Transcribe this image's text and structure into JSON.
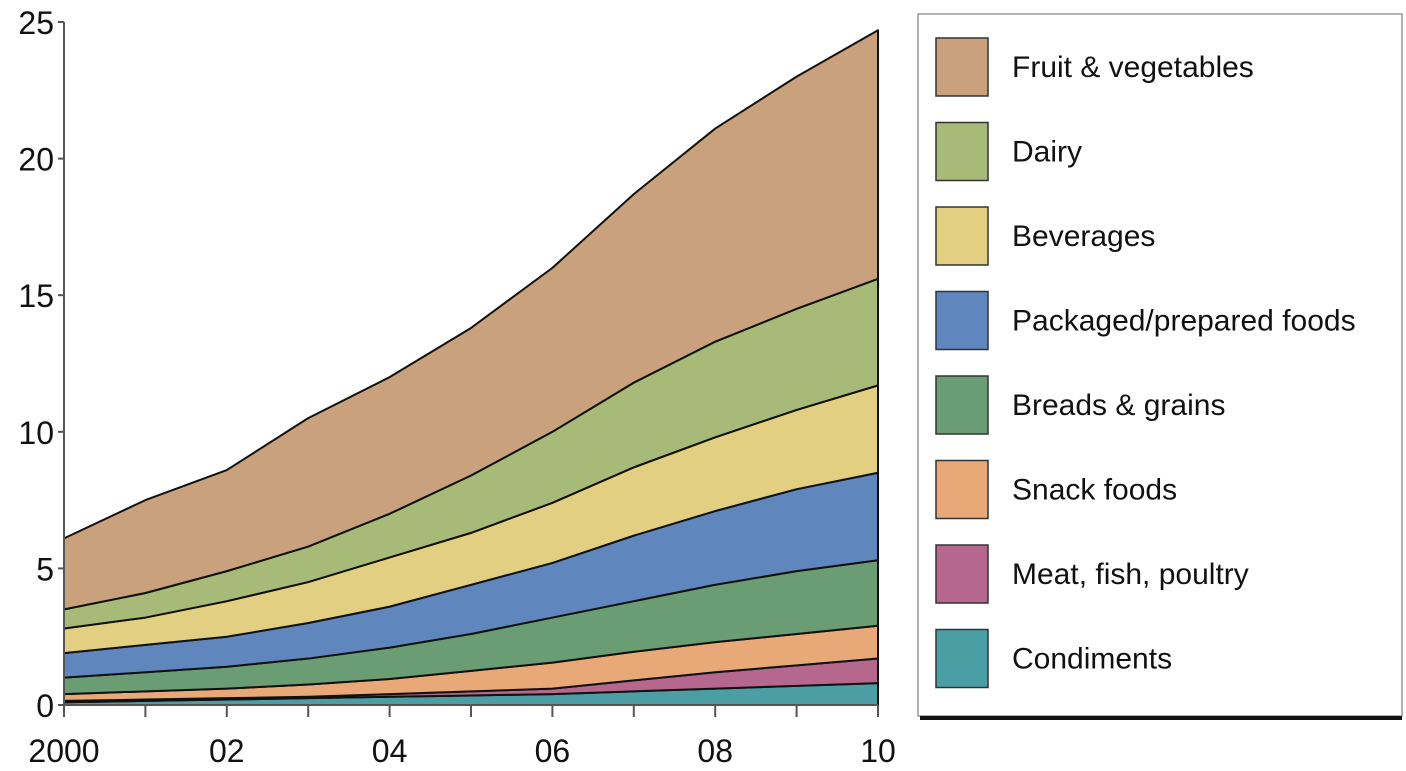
{
  "chart_data": {
    "type": "area",
    "stacked": true,
    "title": "",
    "xlabel": "",
    "ylabel": "",
    "x": [
      2000,
      2001,
      2002,
      2003,
      2004,
      2005,
      2006,
      2007,
      2008,
      2009,
      2010
    ],
    "x_tick_values": [
      2000,
      2002,
      2004,
      2006,
      2008,
      2010
    ],
    "x_tick_labels": [
      "2000",
      "02",
      "04",
      "06",
      "08",
      "10"
    ],
    "xlim": [
      2000,
      2010
    ],
    "ylim": [
      0,
      25
    ],
    "y_tick_values": [
      0,
      5,
      10,
      15,
      20,
      25
    ],
    "y_tick_labels": [
      "0",
      "5",
      "10",
      "15",
      "20",
      "25"
    ],
    "grid": false,
    "legend_position": "right",
    "series": [
      {
        "name": "Condiments",
        "color": "#4a9ea4",
        "values": [
          0.1,
          0.15,
          0.2,
          0.25,
          0.3,
          0.35,
          0.4,
          0.5,
          0.6,
          0.7,
          0.8
        ]
      },
      {
        "name": "Meat, fish, poultry",
        "color": "#b5678e",
        "values": [
          0.05,
          0.05,
          0.05,
          0.05,
          0.1,
          0.15,
          0.2,
          0.4,
          0.6,
          0.75,
          0.9
        ]
      },
      {
        "name": "Snack foods",
        "color": "#e9a878",
        "values": [
          0.25,
          0.3,
          0.35,
          0.45,
          0.55,
          0.75,
          0.95,
          1.05,
          1.1,
          1.15,
          1.2
        ]
      },
      {
        "name": "Breads & grains",
        "color": "#6b9d74",
        "values": [
          0.6,
          0.7,
          0.8,
          0.95,
          1.15,
          1.35,
          1.65,
          1.85,
          2.1,
          2.3,
          2.4
        ]
      },
      {
        "name": "Packaged/prepared foods",
        "color": "#5f87be",
        "values": [
          0.9,
          1.0,
          1.1,
          1.3,
          1.5,
          1.8,
          2.0,
          2.4,
          2.7,
          3.0,
          3.2
        ]
      },
      {
        "name": "Beverages",
        "color": "#e3cf82",
        "values": [
          0.9,
          1.0,
          1.3,
          1.5,
          1.8,
          1.9,
          2.2,
          2.5,
          2.7,
          2.9,
          3.2
        ]
      },
      {
        "name": "Dairy",
        "color": "#a8ba78",
        "values": [
          0.7,
          0.9,
          1.1,
          1.3,
          1.6,
          2.1,
          2.6,
          3.1,
          3.5,
          3.7,
          3.9
        ]
      },
      {
        "name": "Fruit & vegetables",
        "color": "#c9a27d",
        "values": [
          2.6,
          3.4,
          3.7,
          4.7,
          5.0,
          5.4,
          6.0,
          6.9,
          7.8,
          8.5,
          9.1
        ]
      }
    ]
  }
}
